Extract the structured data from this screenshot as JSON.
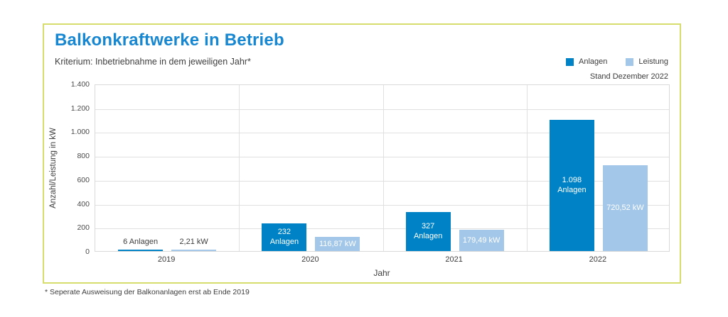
{
  "card": {
    "title": "Balkonkraftwerke in Betrieb",
    "subtitle": "Kriterium: Inbetriebnahme in dem jeweiligen Jahr*",
    "stand_note": "Stand Dezember 2022",
    "footnote": "* Seperate Ausweisung der Balkonanlagen erst ab Ende 2019",
    "border_color": "#d7dd6d",
    "title_color": "#1787d2"
  },
  "legend": {
    "items": [
      {
        "label": "Anlagen",
        "color": "#0082c6"
      },
      {
        "label": "Leistung",
        "color": "#a3c7e8"
      }
    ]
  },
  "chart_data": {
    "type": "bar",
    "title": "Balkonkraftwerke in Betrieb",
    "xlabel": "Jahr",
    "ylabel": "Anzahl/Leistung in kW",
    "categories": [
      "2019",
      "2020",
      "2021",
      "2022"
    ],
    "series": [
      {
        "name": "Anlagen",
        "color": "#0082c6",
        "values": [
          6,
          232,
          327,
          1098
        ],
        "bar_labels": [
          "6 Anlagen",
          "232\nAnlagen",
          "327\nAnlagen",
          "1.098\nAnlagen"
        ]
      },
      {
        "name": "Leistung",
        "color": "#a3c7e8",
        "values": [
          2.21,
          116.87,
          179.49,
          720.52
        ],
        "bar_labels": [
          "2,21 kW",
          "116,87 kW",
          "179,49 kW",
          "720,52 kW"
        ]
      }
    ],
    "label_position": [
      "above",
      "inside",
      "inside",
      "inside"
    ],
    "ylim": [
      0,
      1400
    ],
    "ytick_values": [
      0,
      200,
      400,
      600,
      800,
      1000,
      1200,
      1400
    ],
    "ytick_labels": [
      "0",
      "200",
      "400",
      "600",
      "800",
      "1.000",
      "1.200",
      "1.400"
    ],
    "grid": true,
    "legend_position": "top-right"
  }
}
